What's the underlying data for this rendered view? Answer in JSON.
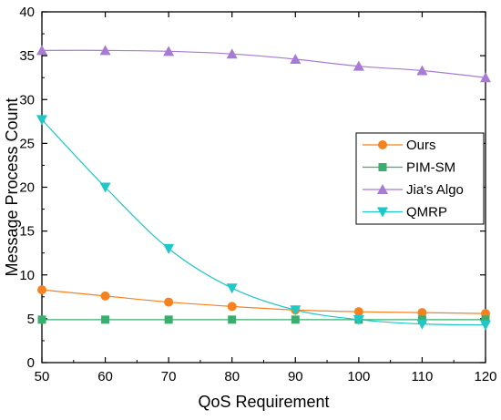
{
  "chart_data": {
    "type": "line",
    "title": "",
    "xlabel": "QoS Requirement",
    "ylabel": "Message Process Count",
    "xlim": [
      50,
      120
    ],
    "ylim": [
      0,
      40
    ],
    "x_ticks": [
      50,
      60,
      70,
      80,
      90,
      100,
      110,
      120
    ],
    "y_ticks": [
      0,
      5,
      10,
      15,
      20,
      25,
      30,
      35,
      40
    ],
    "grid": false,
    "legend_position": "right-middle",
    "x": [
      50,
      60,
      70,
      80,
      90,
      100,
      110,
      120
    ],
    "series": [
      {
        "name": "Ours",
        "values": [
          8.3,
          7.6,
          6.9,
          6.4,
          6.0,
          5.8,
          5.7,
          5.6
        ],
        "color": "#f5821f",
        "marker": "circle"
      },
      {
        "name": "PIM-SM",
        "values": [
          4.9,
          4.9,
          4.9,
          4.9,
          4.9,
          4.9,
          4.9,
          4.9
        ],
        "color": "#3aae6e",
        "marker": "square"
      },
      {
        "name": "Jia's Algo",
        "values": [
          35.6,
          35.6,
          35.5,
          35.2,
          34.6,
          33.8,
          33.3,
          32.5
        ],
        "color": "#a77bd3",
        "marker": "triangle-up"
      },
      {
        "name": "QMRP",
        "values": [
          27.7,
          20.0,
          13.0,
          8.5,
          6.0,
          4.9,
          4.4,
          4.3
        ],
        "color": "#1fc7c7",
        "marker": "triangle-down"
      }
    ]
  }
}
